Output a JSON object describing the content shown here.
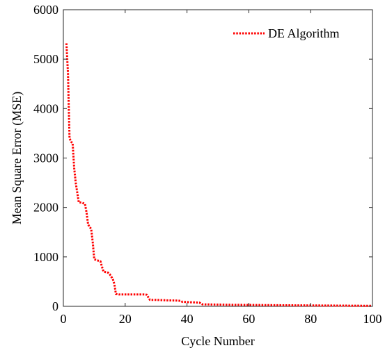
{
  "chart_data": {
    "type": "line",
    "title": "",
    "xlabel": "Cycle Number",
    "ylabel": "Mean Square Error (MSE)",
    "xlim": [
      0,
      100
    ],
    "ylim": [
      0,
      6000
    ],
    "xticks": [
      0,
      20,
      40,
      60,
      80,
      100
    ],
    "yticks": [
      0,
      1000,
      2000,
      3000,
      4000,
      5000,
      6000
    ],
    "grid": false,
    "legend_position": "top-right",
    "series": [
      {
        "name": "DE Algorithm",
        "color": "#ff0000",
        "line_style": "dotted",
        "x": [
          1,
          1.5,
          2,
          2.5,
          3,
          3.5,
          4,
          5,
          6,
          7,
          7.5,
          8,
          8.5,
          9,
          9.5,
          10,
          10.5,
          11,
          12,
          12.5,
          13,
          14,
          14.5,
          15,
          15.5,
          16,
          16.5,
          17,
          18,
          20,
          22,
          24,
          26,
          27,
          27.5,
          28,
          30,
          32,
          34,
          36,
          37,
          38,
          38.5,
          39,
          42,
          44,
          45,
          50,
          55,
          60,
          65,
          70,
          75,
          80,
          85,
          90,
          95,
          100
        ],
        "y": [
          5320,
          4700,
          3400,
          3330,
          3300,
          2800,
          2500,
          2100,
          2100,
          2070,
          1900,
          1660,
          1600,
          1570,
          1300,
          950,
          940,
          930,
          910,
          800,
          700,
          690,
          680,
          650,
          600,
          550,
          450,
          250,
          240,
          240,
          240,
          240,
          240,
          235,
          180,
          130,
          130,
          125,
          120,
          118,
          115,
          110,
          90,
          90,
          80,
          75,
          40,
          35,
          30,
          28,
          25,
          22,
          20,
          18,
          16,
          14,
          12,
          10
        ]
      }
    ]
  }
}
